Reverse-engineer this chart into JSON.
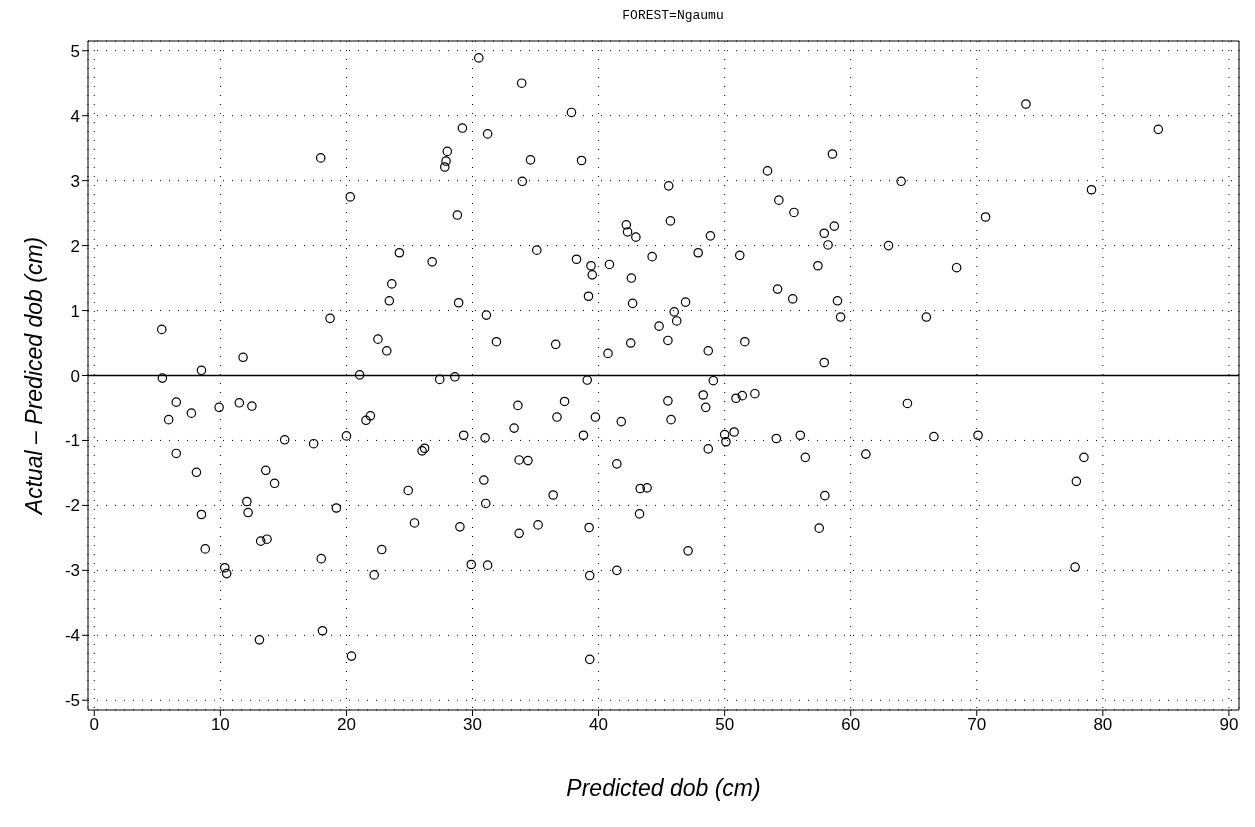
{
  "chart_data": {
    "type": "scatter",
    "title": "FOREST=Ngaumu",
    "xlabel": "Predicted dob (cm)",
    "ylabel": "Actual – Prediced dob (cm)",
    "xlim": [
      -0.5,
      90.8
    ],
    "ylim": [
      -5.15,
      5.15
    ],
    "xticks": [
      0,
      10,
      20,
      30,
      40,
      50,
      60,
      70,
      80,
      90
    ],
    "yticks": [
      -5,
      -4,
      -3,
      -2,
      -1,
      0,
      1,
      2,
      3,
      4,
      5
    ],
    "grid": true,
    "marker": "circle",
    "ref_lines": [
      {
        "axis": "y",
        "value": 0,
        "color": "#000000",
        "line_style": "solid"
      }
    ],
    "series": [
      {
        "color": "#000000",
        "x": [
          5.35,
          5.4,
          5.9,
          6.5,
          6.5,
          7.7,
          8.1,
          8.5,
          8.5,
          8.8,
          9.9,
          10.35,
          10.5,
          11.5,
          11.8,
          12.1,
          12.2,
          12.5,
          13.2,
          13.1,
          13.6,
          13.7,
          14.3,
          15.1,
          17.4,
          17.96,
          18.0,
          18.1,
          18.7,
          19.2,
          20.0,
          20.3,
          20.4,
          21.05,
          21.55,
          21.9,
          22.2,
          22.5,
          22.8,
          23.2,
          23.4,
          23.6,
          24.2,
          24.9,
          25.4,
          26.0,
          26.2,
          26.8,
          27.4,
          27.8,
          27.9,
          28.0,
          28.6,
          28.8,
          28.9,
          29.0,
          29.2,
          29.3,
          29.9,
          30.5,
          30.9,
          31.05,
          31.1,
          31.0,
          31.2,
          31.2,
          31.9,
          33.3,
          33.6,
          33.7,
          33.7,
          33.9,
          33.95,
          34.4,
          34.6,
          35.1,
          35.2,
          36.4,
          36.6,
          36.7,
          37.3,
          37.85,
          38.25,
          38.65,
          38.8,
          39.1,
          39.2,
          39.25,
          39.3,
          39.3,
          39.4,
          39.5,
          39.75,
          40.75,
          40.86,
          41.45,
          41.45,
          41.8,
          42.2,
          42.3,
          42.55,
          42.6,
          42.7,
          42.96,
          43.25,
          43.3,
          43.85,
          44.25,
          44.8,
          45.5,
          45.5,
          45.56,
          45.7,
          45.75,
          46.0,
          46.2,
          46.9,
          47.1,
          47.9,
          48.3,
          48.5,
          48.7,
          48.7,
          48.87,
          49.1,
          50.0,
          50.1,
          50.75,
          50.9,
          51.2,
          51.4,
          51.6,
          52.4,
          53.4,
          54.1,
          54.2,
          54.3,
          55.4,
          55.5,
          56.0,
          56.4,
          57.4,
          57.5,
          57.9,
          57.9,
          57.95,
          58.2,
          58.55,
          58.7,
          58.95,
          59.2,
          61.2,
          63.0,
          64.0,
          64.5,
          66.0,
          66.6,
          68.4,
          70.1,
          70.7,
          73.9,
          77.8,
          77.9,
          78.5,
          79.1,
          84.4
        ],
        "values": [
          0.71,
          -0.04,
          -0.68,
          -0.41,
          -1.2,
          -0.58,
          -1.49,
          0.08,
          -2.14,
          -2.67,
          -0.49,
          -2.96,
          -3.05,
          -0.42,
          0.28,
          -1.94,
          -2.11,
          -0.47,
          -2.55,
          -4.07,
          -1.46,
          -2.52,
          -1.66,
          -0.99,
          -1.05,
          3.35,
          -2.82,
          -3.93,
          0.88,
          -2.04,
          -0.93,
          2.75,
          -4.32,
          0.01,
          -0.69,
          -0.62,
          -3.07,
          0.56,
          -2.68,
          0.38,
          1.15,
          1.41,
          1.89,
          -1.77,
          -2.27,
          -1.16,
          -1.12,
          1.75,
          -0.06,
          3.21,
          3.3,
          3.45,
          -0.02,
          2.47,
          1.12,
          -2.33,
          3.81,
          -0.92,
          -2.91,
          4.89,
          -1.61,
          -1.97,
          0.93,
          -0.96,
          3.72,
          -2.92,
          0.52,
          -0.81,
          -0.46,
          -2.43,
          -1.3,
          4.5,
          2.99,
          -1.31,
          3.32,
          1.93,
          -2.3,
          -1.84,
          0.48,
          -0.64,
          -0.4,
          4.05,
          1.79,
          3.31,
          -0.92,
          -0.07,
          1.22,
          -2.34,
          -3.08,
          -4.37,
          1.69,
          1.55,
          -0.64,
          0.34,
          1.71,
          -1.36,
          -3.0,
          -0.71,
          2.32,
          2.21,
          0.5,
          1.5,
          1.11,
          2.13,
          -2.13,
          -1.74,
          -1.73,
          1.83,
          0.76,
          0.54,
          -0.39,
          2.92,
          2.38,
          -0.68,
          0.98,
          0.84,
          1.13,
          -2.7,
          1.89,
          -0.3,
          -0.49,
          0.38,
          -1.13,
          2.15,
          -0.08,
          -0.91,
          -1.02,
          -0.87,
          -0.35,
          1.85,
          -0.31,
          0.52,
          -0.28,
          3.15,
          -0.97,
          1.33,
          2.7,
          1.18,
          2.51,
          -0.92,
          -1.26,
          1.69,
          -2.35,
          2.19,
          0.2,
          -1.85,
          2.01,
          3.41,
          2.3,
          1.15,
          0.9,
          -1.21,
          2.0,
          2.99,
          -0.43,
          0.9,
          -0.94,
          1.66,
          -0.92,
          2.44,
          4.18,
          -2.95,
          -1.63,
          -1.26,
          2.86,
          3.79
        ]
      }
    ]
  }
}
